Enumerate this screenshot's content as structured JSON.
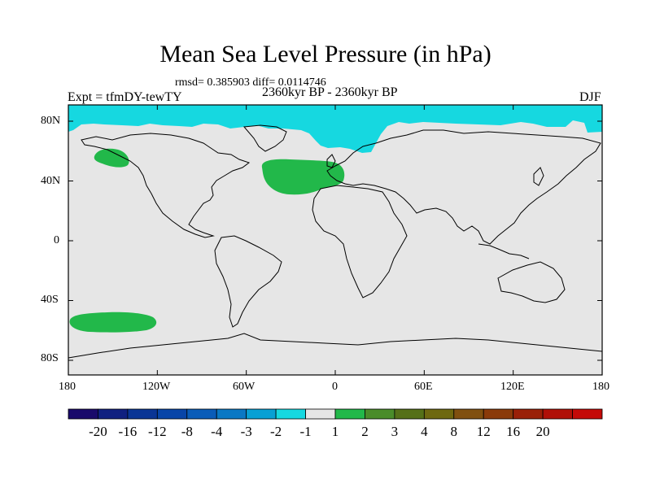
{
  "title": "Mean Sea Level Pressure (in hPa)",
  "stats": "rmsd= 0.385903 diff= 0.0114746",
  "experiment": "Expt = tfmDY-tewTY",
  "period": "2360kyr BP - 2360kyr BP",
  "season": "DJF",
  "lat_labels": [
    "80N",
    "40N",
    "0",
    "40S",
    "80S"
  ],
  "lon_labels": [
    "180",
    "120W",
    "60W",
    "0",
    "60E",
    "120E",
    "180"
  ],
  "colors": {
    "background_fill": "#e6e6e6",
    "negative_anomaly": "#16d8e0",
    "positive_anomaly": "#22b84a",
    "coastline": "#000000"
  },
  "anomaly_regions": [
    {
      "sign": "negative",
      "level": "-1",
      "location": "Arctic / northern high latitudes"
    },
    {
      "sign": "positive",
      "level": "1",
      "location": "North Pacific near 55N"
    },
    {
      "sign": "positive",
      "level": "1",
      "location": "North Atlantic near 45N"
    },
    {
      "sign": "positive",
      "level": "1",
      "location": "South Pacific near 55S"
    }
  ],
  "colorbar": {
    "colors": [
      "#1a0a6b",
      "#102080",
      "#0a3595",
      "#0845a8",
      "#0a5cb8",
      "#0a78c4",
      "#08a0d4",
      "#16d8e0",
      "#e6e6e6",
      "#22b84a",
      "#4a8c2a",
      "#557018",
      "#6e6810",
      "#805010",
      "#8a3a0a",
      "#9a2008",
      "#b01008",
      "#c40a08"
    ],
    "labels": [
      "-20",
      "-16",
      "-12",
      "-8",
      "-4",
      "-3",
      "-2",
      "-1",
      "1",
      "2",
      "3",
      "4",
      "8",
      "12",
      "16",
      "20"
    ]
  }
}
